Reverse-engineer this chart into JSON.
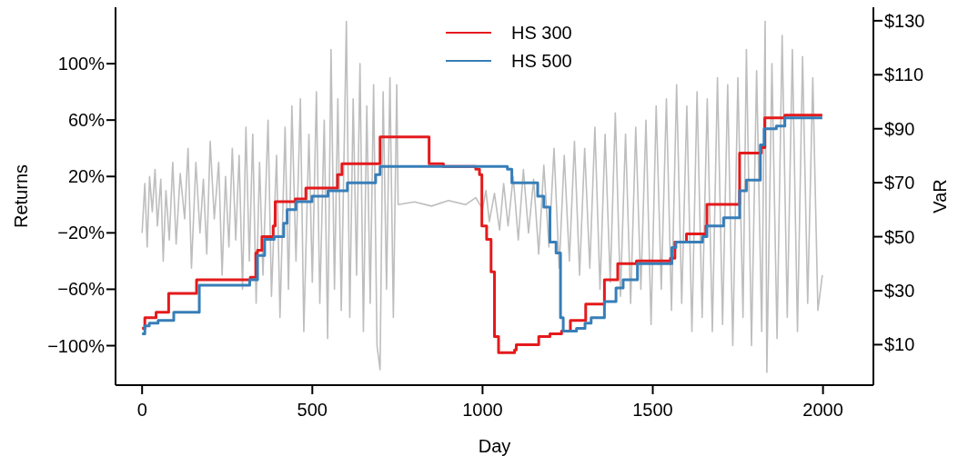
{
  "chart_data": {
    "type": "line",
    "xlabel": "Day",
    "ylabel": "Returns",
    "y2label": "VaR",
    "xlim": [
      -78,
      2148
    ],
    "xticks": [
      0,
      500,
      1000,
      1500,
      2000
    ],
    "ylim": [
      -128,
      140
    ],
    "yticks": [
      {
        "value": -100,
        "label": "−100%"
      },
      {
        "value": -60,
        "label": "−60%"
      },
      {
        "value": -20,
        "label": "−20%"
      },
      {
        "value": 20,
        "label": "20%"
      },
      {
        "value": 60,
        "label": "60%"
      },
      {
        "value": 100,
        "label": "100%"
      }
    ],
    "y2lim": [
      -5,
      135
    ],
    "y2ticks": [
      {
        "value": 10,
        "label": "$10"
      },
      {
        "value": 30,
        "label": "$30"
      },
      {
        "value": 50,
        "label": "$50"
      },
      {
        "value": 70,
        "label": "$70"
      },
      {
        "value": 90,
        "label": "$90"
      },
      {
        "value": 110,
        "label": "$110"
      },
      {
        "value": 130,
        "label": "$130"
      }
    ],
    "grid": false,
    "legend": "top",
    "line_style": "solid",
    "series": [
      {
        "color": "#bebebe",
        "x": [
          0,
          8,
          15,
          22,
          30,
          38,
          45,
          55,
          62,
          70,
          80,
          90,
          100,
          112,
          125,
          135,
          145,
          158,
          170,
          180,
          190,
          200,
          212,
          225,
          235,
          245,
          255,
          265,
          275,
          285,
          295,
          305,
          315,
          325,
          335,
          345,
          355,
          370,
          380,
          395,
          405,
          420,
          430,
          440,
          452,
          465,
          475,
          490,
          500,
          512,
          522,
          535,
          545,
          555,
          565,
          575,
          585,
          595,
          600,
          610,
          620,
          630,
          640,
          650,
          660,
          670,
          680,
          690,
          699,
          708,
          718,
          728,
          738,
          748,
          752,
          800,
          850,
          900,
          950,
          980,
          1000,
          1010,
          1020,
          1035,
          1050,
          1062,
          1075,
          1090,
          1105,
          1120,
          1135,
          1150,
          1165,
          1180,
          1195,
          1210,
          1225,
          1240,
          1255,
          1270,
          1285,
          1300,
          1315,
          1330,
          1345,
          1360,
          1375,
          1390,
          1405,
          1420,
          1435,
          1450,
          1465,
          1480,
          1495,
          1510,
          1525,
          1540,
          1555,
          1570,
          1585,
          1600,
          1615,
          1630,
          1645,
          1660,
          1675,
          1690,
          1705,
          1720,
          1735,
          1750,
          1765,
          1775,
          1790,
          1805,
          1820,
          1830,
          1835,
          1850,
          1865,
          1880,
          1895,
          1910,
          1925,
          1940,
          1955,
          1970,
          1985,
          1998
        ],
        "values": [
          -20,
          15,
          -30,
          20,
          -5,
          25,
          -15,
          18,
          -40,
          10,
          -25,
          30,
          -28,
          22,
          -10,
          40,
          -45,
          30,
          -20,
          18,
          -35,
          45,
          -10,
          30,
          -50,
          20,
          -30,
          40,
          -25,
          35,
          -60,
          55,
          -40,
          50,
          -70,
          30,
          -50,
          60,
          -65,
          35,
          -80,
          55,
          -60,
          70,
          -40,
          75,
          -90,
          50,
          -55,
          80,
          -70,
          60,
          -95,
          110,
          -60,
          75,
          -75,
          60,
          130,
          -80,
          75,
          -50,
          100,
          -90,
          70,
          -70,
          85,
          -100,
          -117,
          80,
          -60,
          90,
          -80,
          85,
          0,
          2,
          -1,
          3,
          0,
          5,
          -3,
          10,
          -12,
          8,
          -18,
          15,
          -15,
          20,
          -25,
          25,
          -20,
          18,
          -35,
          28,
          -30,
          40,
          -45,
          35,
          -40,
          45,
          -50,
          40,
          -45,
          55,
          -60,
          50,
          -55,
          65,
          -65,
          50,
          -70,
          55,
          -60,
          60,
          -85,
          70,
          -60,
          75,
          -75,
          85,
          -70,
          70,
          -90,
          80,
          -80,
          75,
          -90,
          90,
          -85,
          85,
          -100,
          90,
          -80,
          110,
          -100,
          95,
          -90,
          130,
          -119,
          100,
          -95,
          120,
          -80,
          110,
          -90,
          105,
          -70,
          90,
          -75,
          -50
        ]
      },
      {
        "type": "step",
        "axis": "y2",
        "name": "HS 300",
        "color": "#e41a1c",
        "x": [
          0,
          8,
          41,
          78,
          160,
          318,
          334,
          339,
          352,
          385,
          391,
          450,
          481,
          574,
          587,
          699,
          843,
          885,
          980,
          991,
          998,
          1012,
          1025,
          1035,
          1047,
          1094,
          1099,
          1165,
          1198,
          1232,
          1258,
          1303,
          1358,
          1397,
          1452,
          1552,
          1565,
          1599,
          1656,
          1659,
          1755,
          1819,
          1829,
          1888,
          1998
        ],
        "values": [
          16,
          20,
          22,
          29,
          34,
          35,
          44,
          45,
          50,
          54,
          63,
          64,
          68,
          73,
          77,
          87,
          77,
          76,
          75,
          73,
          54,
          49,
          37,
          13,
          7,
          8,
          10,
          13,
          14,
          15,
          19,
          25,
          34,
          40,
          41,
          42,
          48,
          51,
          54,
          62,
          81,
          83,
          94,
          95,
          95
        ]
      },
      {
        "type": "step",
        "axis": "y2",
        "name": "HS 500",
        "color": "#377eb8",
        "x": [
          0,
          8,
          21,
          47,
          93,
          158,
          168,
          316,
          339,
          360,
          388,
          416,
          426,
          452,
          499,
          546,
          603,
          686,
          699,
          1042,
          1073,
          1086,
          1162,
          1180,
          1198,
          1216,
          1229,
          1237,
          1276,
          1301,
          1319,
          1358,
          1392,
          1413,
          1455,
          1556,
          1568,
          1646,
          1659,
          1708,
          1755,
          1775,
          1816,
          1827,
          1863,
          1888,
          1998
        ],
        "values": [
          14,
          17,
          18,
          19,
          22,
          22,
          32,
          34,
          43,
          49,
          50,
          55,
          60,
          63,
          65,
          67,
          70,
          73,
          76,
          76,
          75,
          70,
          65,
          61,
          48,
          44,
          20,
          15,
          16,
          18,
          20,
          26,
          31,
          34,
          40,
          46,
          48,
          50,
          54,
          57,
          67,
          71,
          84,
          90,
          91,
          94,
          94
        ]
      }
    ]
  }
}
